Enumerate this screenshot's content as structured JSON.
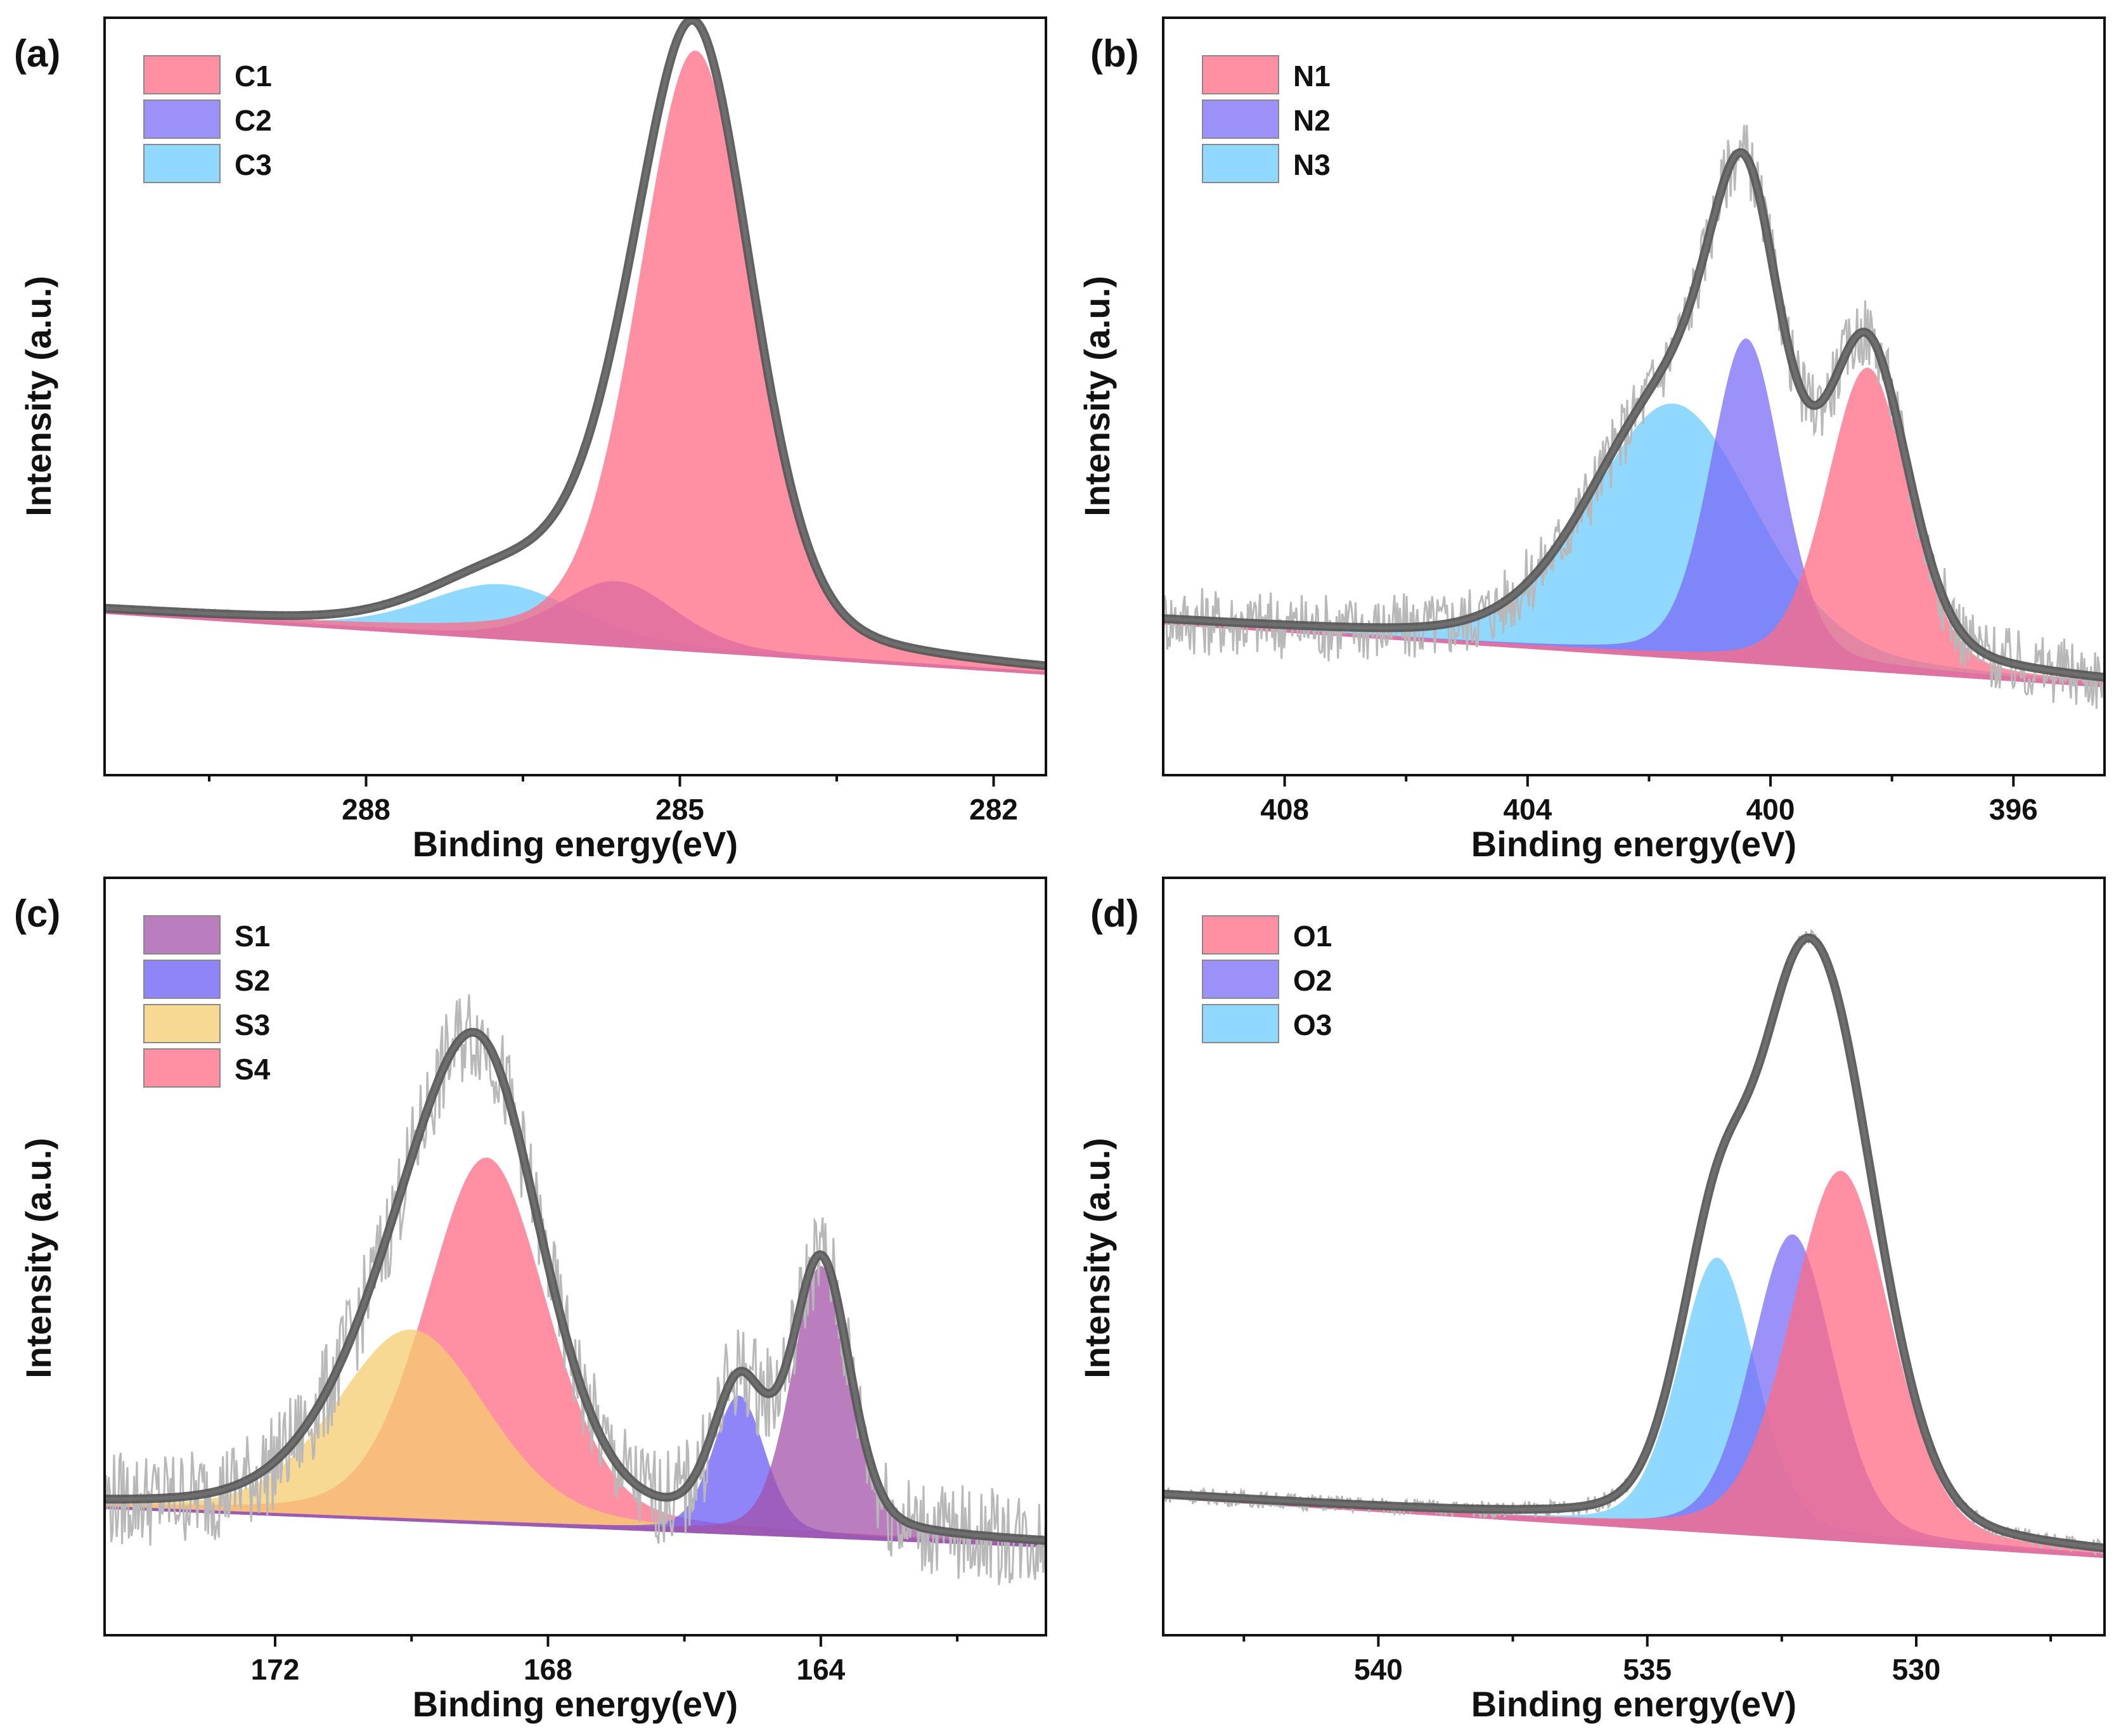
{
  "figure": {
    "description_labels": [
      "(a)",
      "(b)",
      "(c)",
      "(d)"
    ]
  },
  "chart_data": [
    {
      "id": "a",
      "type": "area",
      "panel_label": "(a)",
      "xlabel": "Binding energy(eV)",
      "ylabel": "Intensity (a.u.)",
      "xlim": [
        290.5,
        281.5
      ],
      "ylim": [
        0,
        1.0
      ],
      "x_ticks": [
        288,
        285,
        282
      ],
      "x_minor_ticks": [
        289.5,
        286.5,
        283.5
      ],
      "baseline": {
        "left": 0.18,
        "right": 0.093
      },
      "legend": [
        "C1",
        "C2",
        "C3"
      ],
      "series": [
        {
          "name": "C1",
          "color": "#ff6b84",
          "type": "peak",
          "center": 284.85,
          "height": 0.855,
          "fwhm": 1.3
        },
        {
          "name": "C2",
          "color": "#7a6cf5",
          "type": "peak",
          "center": 285.6,
          "height": 0.09,
          "fwhm": 1.3
        },
        {
          "name": "C3",
          "color": "#6ccbff",
          "type": "peak",
          "center": 286.7,
          "height": 0.075,
          "fwhm": 1.7
        }
      ],
      "raw_noise": 0.004,
      "show_raw": true
    },
    {
      "id": "b",
      "type": "area",
      "panel_label": "(b)",
      "xlabel": "Binding energy(eV)",
      "ylabel": "Intensity (a.u.)",
      "xlim": [
        410,
        394.5
      ],
      "ylim": [
        0,
        1.0
      ],
      "x_ticks": [
        408,
        404,
        400,
        396
      ],
      "x_minor_ticks": [
        406,
        402,
        398
      ],
      "baseline": {
        "left": 0.165,
        "right": 0.075
      },
      "legend": [
        "N1",
        "N2",
        "N3"
      ],
      "series": [
        {
          "name": "N1",
          "color": "#ff6b84",
          "type": "peak",
          "center": 398.4,
          "height": 0.43,
          "fwhm": 1.6
        },
        {
          "name": "N2",
          "color": "#7a6cf5",
          "type": "peak",
          "center": 400.4,
          "height": 0.46,
          "fwhm": 1.4
        },
        {
          "name": "N3",
          "color": "#6ccbff",
          "type": "peak",
          "center": 401.6,
          "height": 0.36,
          "fwhm": 3.2
        }
      ],
      "raw_noise": 0.05,
      "show_raw": true
    },
    {
      "id": "c",
      "type": "area",
      "panel_label": "(c)",
      "xlabel": "Binding energy(eV)",
      "ylabel": "Intensity (a.u.)",
      "xlim": [
        174.5,
        160.7
      ],
      "ylim": [
        0,
        1.0
      ],
      "x_ticks": [
        172,
        168,
        164
      ],
      "x_minor_ticks": [
        170,
        166,
        162
      ],
      "baseline": {
        "left": 0.13,
        "right": 0.075
      },
      "legend": [
        "S1",
        "S2",
        "S3",
        "S4"
      ],
      "series": [
        {
          "name": "S1",
          "color": "#a352a8",
          "type": "peak",
          "center": 164.0,
          "height": 0.385,
          "fwhm": 1.0
        },
        {
          "name": "S2",
          "color": "#6a5cf7",
          "type": "peak",
          "center": 165.2,
          "height": 0.195,
          "fwhm": 0.9
        },
        {
          "name": "S3",
          "color": "#f5cc70",
          "type": "peak",
          "center": 170.0,
          "height": 0.27,
          "fwhm": 2.6
        },
        {
          "name": "S4",
          "color": "#ff6b84",
          "type": "peak",
          "center": 168.9,
          "height": 0.52,
          "fwhm": 2.1
        }
      ],
      "raw_noise": 0.07,
      "show_raw": true
    },
    {
      "id": "d",
      "type": "area",
      "panel_label": "(d)",
      "xlabel": "Binding energy(eV)",
      "ylabel": "Intensity (a.u.)",
      "xlim": [
        544,
        526.5
      ],
      "ylim": [
        0,
        1.0
      ],
      "x_ticks": [
        540,
        535,
        530
      ],
      "x_minor_ticks": [
        542.5,
        537.5,
        532.5,
        527.5
      ],
      "baseline": {
        "left": 0.145,
        "right": 0.06
      },
      "legend": [
        "O1",
        "O2",
        "O3"
      ],
      "series": [
        {
          "name": "O1",
          "color": "#ff6b84",
          "type": "peak",
          "center": 531.4,
          "height": 0.525,
          "fwhm": 2.2
        },
        {
          "name": "O2",
          "color": "#7a6cf5",
          "type": "peak",
          "center": 532.3,
          "height": 0.43,
          "fwhm": 1.8
        },
        {
          "name": "O3",
          "color": "#6ccbff",
          "type": "peak",
          "center": 533.7,
          "height": 0.39,
          "fwhm": 1.7
        }
      ],
      "raw_noise": 0.012,
      "show_raw": true
    }
  ]
}
